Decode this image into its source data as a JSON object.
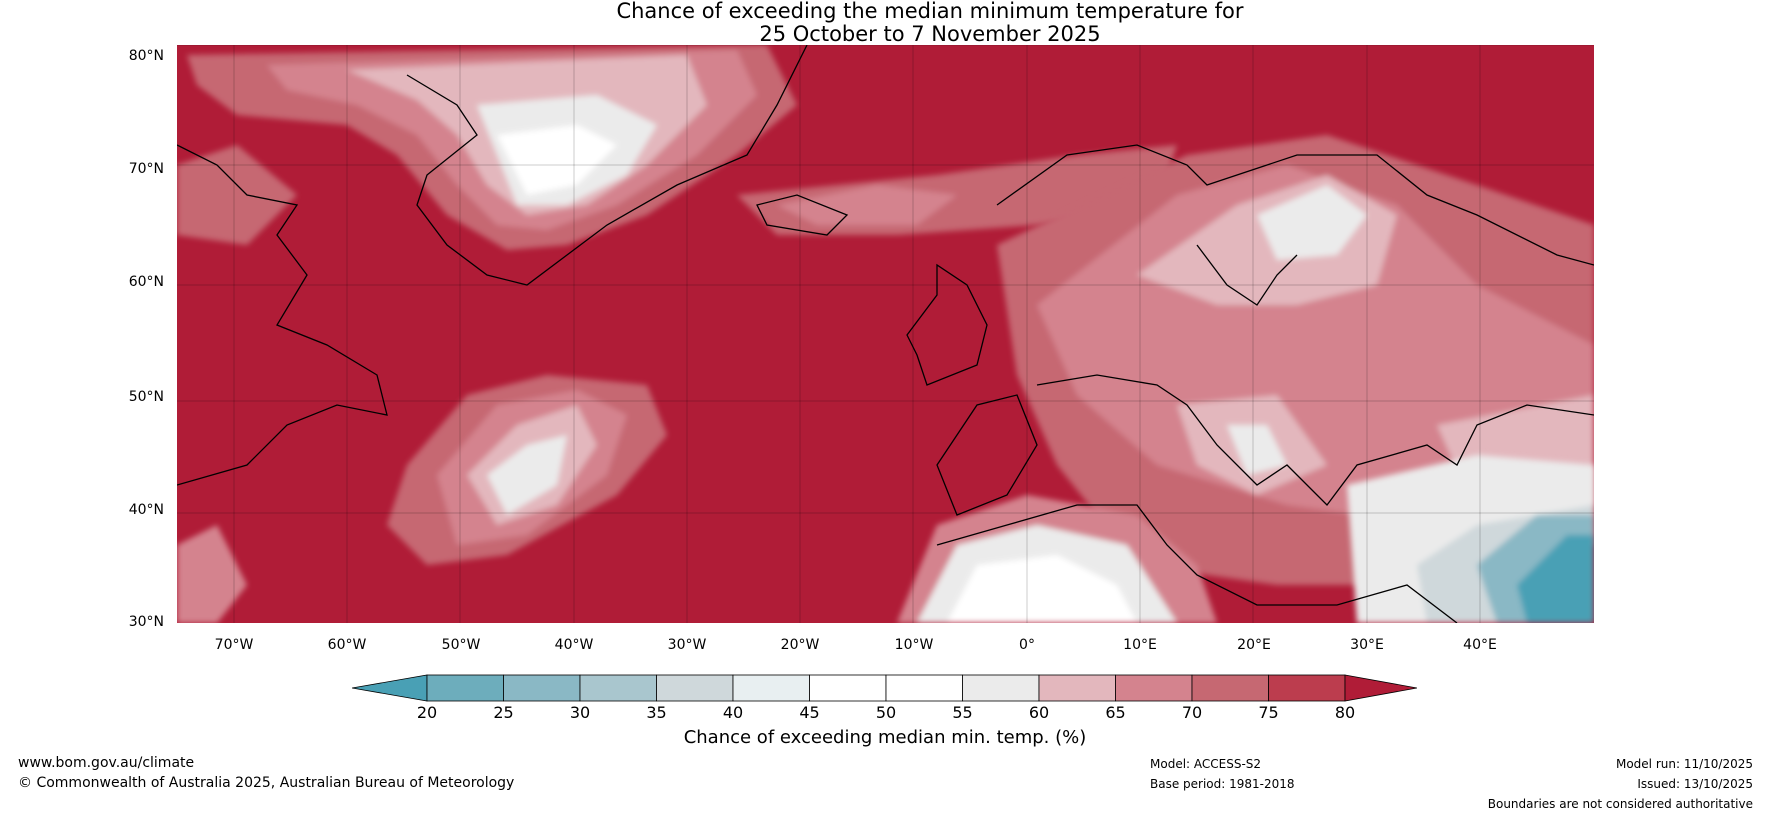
{
  "title_line1": "Chance of exceeding the median minimum temperature for",
  "title_line2": "25 October to 7 November 2025",
  "map": {
    "lat_labels": [
      "80°N",
      "70°N",
      "60°N",
      "50°N",
      "40°N",
      "30°N"
    ],
    "lon_labels": [
      "70°W",
      "60°W",
      "50°W",
      "40°W",
      "30°W",
      "20°W",
      "10°W",
      "0°",
      "10°E",
      "20°E",
      "30°E",
      "40°E"
    ]
  },
  "colorbar": {
    "ticks": [
      "20",
      "25",
      "30",
      "35",
      "40",
      "45",
      "50",
      "55",
      "60",
      "65",
      "70",
      "75",
      "80"
    ],
    "colors": {
      "below20": "#49a0b5",
      "b20_25": "#6dadbc",
      "b25_30": "#8ab8c5",
      "b30_35": "#a9c6ce",
      "b35_40": "#cfd8db",
      "b40_45": "#e8eff1",
      "b45_50": "#ffffff",
      "b50_55": "#ffffff",
      "b55_60": "#ebebeb",
      "b60_65": "#e3b7bd",
      "b65_70": "#d4838e",
      "b70_75": "#c66872",
      "b75_80": "#bc3d4e",
      "above80": "#b01c37"
    },
    "label": "Chance of exceeding median min. temp. (%)"
  },
  "footer": {
    "website": "www.bom.gov.au/climate",
    "copyright": "© Commonwealth of Australia 2025, Australian Bureau of Meteorology",
    "model": "Model: ACCESS-S2",
    "base_period": "Base period: 1981-2018",
    "model_run": "Model run: 11/10/2025",
    "issued": "Issued: 13/10/2025",
    "disclaimer": "Boundaries are not considered authoritative"
  }
}
